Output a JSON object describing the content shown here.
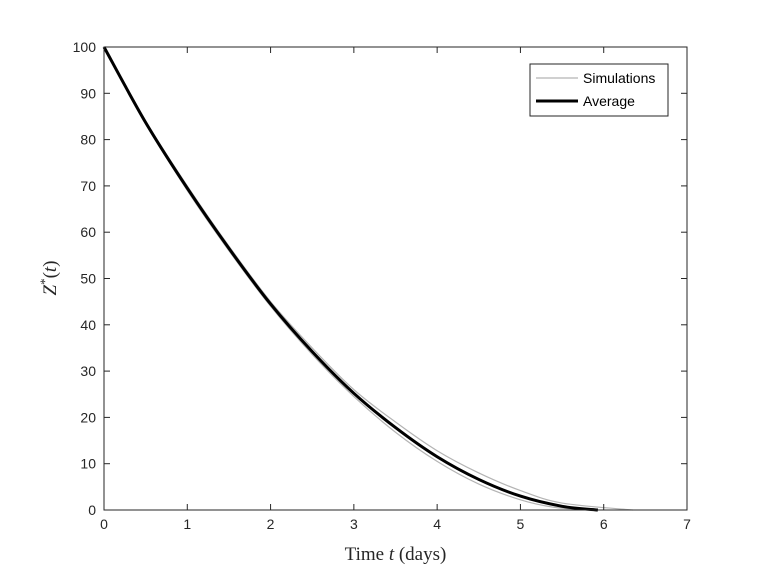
{
  "chart_data": {
    "type": "line",
    "xlabel_parts": [
      "Time ",
      "t",
      " (days)"
    ],
    "ylabel_parts": [
      "Z",
      "*",
      "(",
      "t",
      ")"
    ],
    "xlim": [
      0,
      7
    ],
    "ylim": [
      0,
      100
    ],
    "x_ticks": [
      "0",
      "1",
      "2",
      "3",
      "4",
      "5",
      "6",
      "7"
    ],
    "y_ticks": [
      "0",
      "10",
      "20",
      "30",
      "40",
      "50",
      "60",
      "70",
      "80",
      "90",
      "100"
    ],
    "grid": false,
    "legend_position": "top-right",
    "legend": [
      {
        "label": "Simulations",
        "color": "#b4b4b4"
      },
      {
        "label": "Average",
        "color": "#000000"
      }
    ],
    "series": [
      {
        "name": "Simulations",
        "color": "#b4b4b4",
        "x": [
          0,
          0.5,
          1,
          1.5,
          2,
          2.5,
          3,
          3.5,
          4,
          4.5,
          5,
          5.5,
          6.35
        ],
        "y": [
          100,
          84,
          70,
          57,
          45,
          35,
          26,
          19,
          12.8,
          8,
          4.2,
          1.5,
          0
        ]
      },
      {
        "name": "Simulations",
        "color": "#b4b4b4",
        "x": [
          0,
          0.5,
          1,
          1.5,
          2,
          2.5,
          3,
          3.5,
          4,
          4.5,
          5,
          5.4,
          5.85
        ],
        "y": [
          100,
          83.5,
          69,
          56,
          44,
          33.6,
          24.5,
          16.8,
          10.5,
          5.6,
          2.2,
          0.6,
          0
        ]
      },
      {
        "name": "Average",
        "color": "#000000",
        "x": [
          0,
          0.5,
          1,
          1.5,
          2,
          2.5,
          3,
          3.5,
          4,
          4.5,
          5,
          5.5,
          5.93
        ],
        "y": [
          100,
          83.7,
          69.5,
          56.5,
          44.5,
          34.2,
          25.2,
          17.8,
          11.5,
          6.6,
          3.0,
          0.8,
          0
        ]
      }
    ]
  }
}
